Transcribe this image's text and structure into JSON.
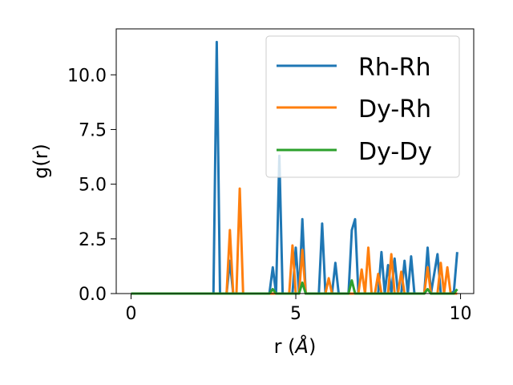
{
  "chart_data": {
    "type": "line",
    "xlabel": "r (",
    "xlabel_unit": "Å",
    "xlabel_close": ")",
    "ylabel": "g(r)",
    "xlim": [
      -0.45,
      10.4
    ],
    "ylim": [
      0,
      12.1
    ],
    "xticks": [
      0,
      5,
      10
    ],
    "xtick_labels": [
      "0",
      "5",
      "10"
    ],
    "yticks": [
      0,
      2.5,
      5,
      7.5,
      10
    ],
    "ytick_labels": [
      "0.0",
      "2.5",
      "5.0",
      "7.5",
      "10.0"
    ],
    "grid": false,
    "legend_position": "upper-right",
    "series": [
      {
        "name": "Rh-Rh",
        "color": "#1f77b4",
        "points": [
          [
            0,
            0
          ],
          [
            2.5,
            0
          ],
          [
            2.6,
            11.5
          ],
          [
            2.7,
            0
          ],
          [
            2.9,
            0
          ],
          [
            3.0,
            1.5
          ],
          [
            3.1,
            0
          ],
          [
            4.2,
            0
          ],
          [
            4.3,
            1.2
          ],
          [
            4.4,
            0
          ],
          [
            4.5,
            6.3
          ],
          [
            4.6,
            0
          ],
          [
            4.9,
            0
          ],
          [
            5.0,
            2.1
          ],
          [
            5.1,
            0
          ],
          [
            5.2,
            3.4
          ],
          [
            5.3,
            0
          ],
          [
            5.7,
            0
          ],
          [
            5.8,
            3.2
          ],
          [
            5.9,
            0
          ],
          [
            6.1,
            0
          ],
          [
            6.2,
            1.4
          ],
          [
            6.3,
            0
          ],
          [
            6.6,
            0
          ],
          [
            6.7,
            2.9
          ],
          [
            6.8,
            3.4
          ],
          [
            6.9,
            0
          ],
          [
            7.5,
            0
          ],
          [
            7.6,
            1.9
          ],
          [
            7.7,
            0
          ],
          [
            7.8,
            1.3
          ],
          [
            7.9,
            0
          ],
          [
            8.0,
            1.6
          ],
          [
            8.1,
            0
          ],
          [
            8.2,
            0
          ],
          [
            8.3,
            1.5
          ],
          [
            8.4,
            0
          ],
          [
            8.5,
            1.7
          ],
          [
            8.6,
            0
          ],
          [
            8.9,
            0
          ],
          [
            9.0,
            2.1
          ],
          [
            9.1,
            0
          ],
          [
            9.3,
            1.8
          ],
          [
            9.4,
            0
          ],
          [
            9.7,
            0
          ],
          [
            9.8,
            0.1
          ],
          [
            9.9,
            1.9
          ]
        ]
      },
      {
        "name": "Dy-Rh",
        "color": "#ff7f0e",
        "points": [
          [
            0,
            0
          ],
          [
            2.9,
            0
          ],
          [
            3.0,
            2.9
          ],
          [
            3.1,
            0
          ],
          [
            3.2,
            0
          ],
          [
            3.3,
            4.8
          ],
          [
            3.4,
            0
          ],
          [
            4.8,
            0
          ],
          [
            4.9,
            2.2
          ],
          [
            5.0,
            0
          ],
          [
            5.1,
            0
          ],
          [
            5.2,
            2.0
          ],
          [
            5.3,
            0
          ],
          [
            5.9,
            0
          ],
          [
            6.0,
            0.7
          ],
          [
            6.1,
            0
          ],
          [
            6.9,
            0
          ],
          [
            7.0,
            1.1
          ],
          [
            7.1,
            0
          ],
          [
            7.2,
            2.1
          ],
          [
            7.3,
            0
          ],
          [
            7.4,
            0
          ],
          [
            7.5,
            0.9
          ],
          [
            7.6,
            0
          ],
          [
            7.8,
            0
          ],
          [
            7.9,
            1.8
          ],
          [
            8.0,
            0
          ],
          [
            8.1,
            0
          ],
          [
            8.2,
            1.0
          ],
          [
            8.3,
            0
          ],
          [
            8.9,
            0
          ],
          [
            9.0,
            1.2
          ],
          [
            9.1,
            0
          ],
          [
            9.3,
            0
          ],
          [
            9.4,
            1.4
          ],
          [
            9.5,
            0
          ],
          [
            9.6,
            1.2
          ],
          [
            9.7,
            0
          ],
          [
            9.9,
            0
          ]
        ]
      },
      {
        "name": "Dy-Dy",
        "color": "#2ca02c",
        "points": [
          [
            0,
            0
          ],
          [
            4.2,
            0
          ],
          [
            4.3,
            0.2
          ],
          [
            4.4,
            0
          ],
          [
            5.1,
            0
          ],
          [
            5.2,
            0.5
          ],
          [
            5.3,
            0
          ],
          [
            6.6,
            0
          ],
          [
            6.7,
            0.6
          ],
          [
            6.8,
            0
          ],
          [
            8.9,
            0
          ],
          [
            9.0,
            0.2
          ],
          [
            9.1,
            0
          ],
          [
            9.8,
            0
          ],
          [
            9.9,
            0.2
          ]
        ]
      }
    ]
  }
}
